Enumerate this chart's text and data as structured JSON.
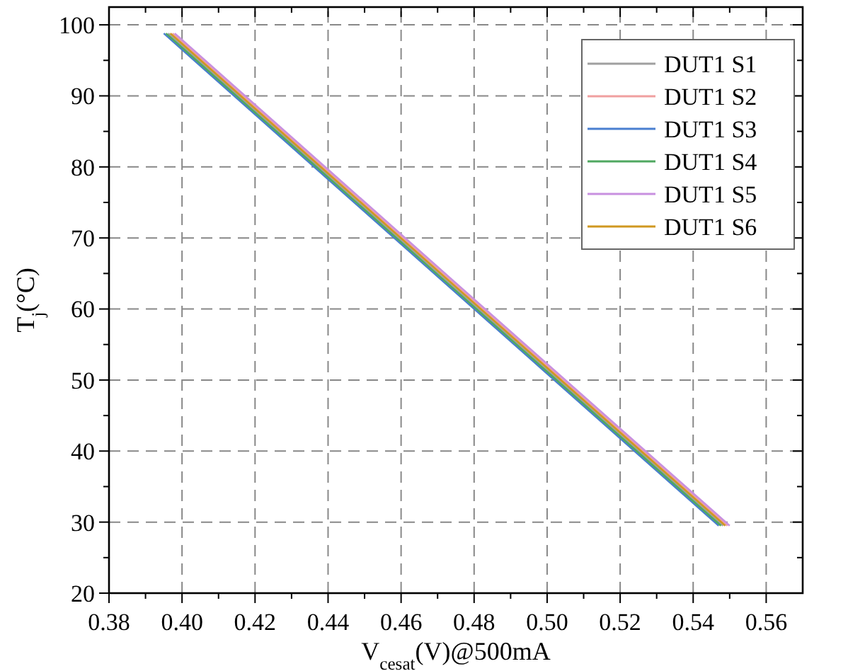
{
  "chart_data": {
    "type": "line",
    "xlabel": "V$_{cesat}$(V)@500mA",
    "ylabel": "T$_{j}$(°C)",
    "xlim": [
      0.38,
      0.57
    ],
    "xticks": [
      0.38,
      {
        "value": 0.4,
        "label": "0.40"
      },
      0.42,
      0.44,
      0.46,
      0.48,
      {
        "value": 0.5,
        "label": "0.50"
      },
      0.52,
      0.54,
      0.56
    ],
    "ylim": [
      20,
      102.5
    ],
    "yticks": [
      20,
      30,
      40,
      50,
      60,
      70,
      80,
      90,
      100
    ],
    "grid": true,
    "legend": "top right",
    "line_style": "solid",
    "series": [
      {
        "name": "DUT1 S1",
        "color": "#a0a0a0",
        "x": [
          0.3962,
          0.472,
          0.5482
        ],
        "values": [
          98.8,
          64.2,
          29.5
        ]
      },
      {
        "name": "DUT1 S2",
        "color": "#f0a0a0",
        "x": [
          0.3974,
          0.4732,
          0.5494
        ],
        "values": [
          98.8,
          64.2,
          29.5
        ]
      },
      {
        "name": "DUT1 S3",
        "color": "#4a7fd0",
        "x": [
          0.395,
          0.4708,
          0.547
        ],
        "values": [
          98.8,
          64.2,
          29.5
        ]
      },
      {
        "name": "DUT1 S4",
        "color": "#4fa860",
        "x": [
          0.3956,
          0.4714,
          0.5476
        ],
        "values": [
          98.8,
          64.2,
          29.5
        ]
      },
      {
        "name": "DUT1 S5",
        "color": "#c890e0",
        "x": [
          0.398,
          0.4738,
          0.55
        ],
        "values": [
          98.8,
          64.2,
          29.5
        ]
      },
      {
        "name": "DUT1 S6",
        "color": "#d09820",
        "x": [
          0.3968,
          0.4726,
          0.5488
        ],
        "values": [
          98.8,
          64.2,
          29.5
        ]
      }
    ]
  }
}
